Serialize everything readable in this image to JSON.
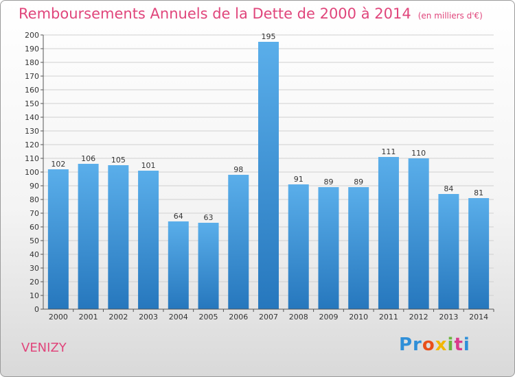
{
  "chart_data": {
    "type": "bar",
    "title": "Remboursements Annuels de la Dette de 2000 à 2014",
    "subtitle": "(en milliers d'€)",
    "categories": [
      "2000",
      "2001",
      "2002",
      "2003",
      "2004",
      "2005",
      "2006",
      "2007",
      "2008",
      "2009",
      "2010",
      "2011",
      "2012",
      "2013",
      "2014"
    ],
    "values": [
      102,
      106,
      105,
      101,
      64,
      63,
      98,
      195,
      91,
      89,
      89,
      111,
      110,
      84,
      81
    ],
    "ylim": [
      0,
      200
    ],
    "ytick_step": 10,
    "grid": "horizontal",
    "bar_color": "#3a8fd6"
  },
  "footer": {
    "city": "VENIZY",
    "logo": [
      "Pr",
      "o",
      "x",
      "i",
      "t",
      "i"
    ]
  }
}
